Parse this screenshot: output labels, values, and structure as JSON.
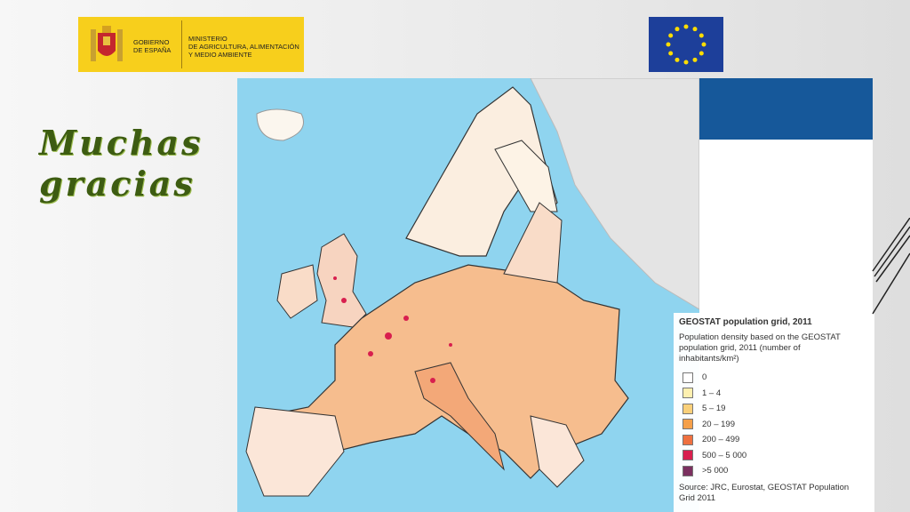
{
  "header": {
    "government": [
      "GOBIERNO",
      "DE ESPAÑA"
    ],
    "ministry": [
      "MINISTERIO",
      "DE AGRICULTURA, ALIMENTACIÓN",
      "Y MEDIO AMBIENTE"
    ]
  },
  "title": [
    "Muchas",
    "gracias"
  ],
  "legend": {
    "title": "GEOSTAT population grid, 2011",
    "description": [
      "Population density based on the GEOSTAT",
      "population grid, 2011 (number of",
      "inhabitants/km²)"
    ],
    "items": [
      {
        "label": "0",
        "color": "#ffffff"
      },
      {
        "label": "1 – 4",
        "color": "#fdf0b0"
      },
      {
        "label": "5 – 19",
        "color": "#f9d07a"
      },
      {
        "label": "20 – 199",
        "color": "#f5a04a"
      },
      {
        "label": "200 – 499",
        "color": "#ee7040"
      },
      {
        "label": "500 – 5 000",
        "color": "#d81f4e"
      },
      {
        "label": ">5 000",
        "color": "#7a3060"
      }
    ],
    "source": [
      "Source: JRC, Eurostat, GEOSTAT Population",
      "Grid 2011"
    ]
  }
}
